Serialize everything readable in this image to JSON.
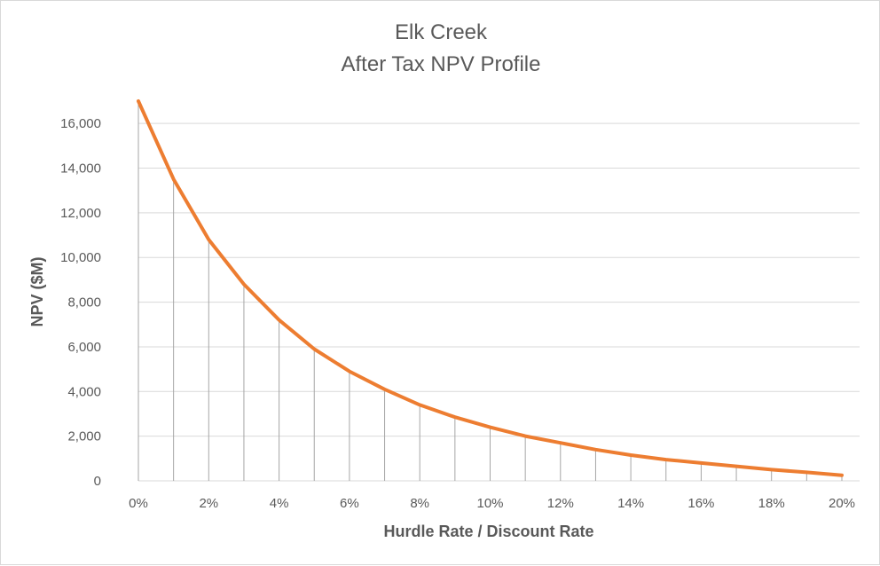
{
  "chart_data": {
    "type": "line",
    "title_lines": [
      "Elk Creek",
      "After Tax NPV Profile"
    ],
    "xlabel": "Hurdle Rate / Discount Rate",
    "ylabel": "NPV ($M)",
    "x": [
      0,
      1,
      2,
      3,
      4,
      5,
      6,
      7,
      8,
      9,
      10,
      11,
      12,
      13,
      14,
      15,
      16,
      17,
      18,
      19,
      20
    ],
    "x_tick_values": [
      0,
      2,
      4,
      6,
      8,
      10,
      12,
      14,
      16,
      18,
      20
    ],
    "x_tick_labels": [
      "0%",
      "2%",
      "4%",
      "6%",
      "8%",
      "10%",
      "12%",
      "14%",
      "16%",
      "18%",
      "20%"
    ],
    "y_tick_values": [
      0,
      2000,
      4000,
      6000,
      8000,
      10000,
      12000,
      14000,
      16000
    ],
    "y_tick_labels": [
      "0",
      "2,000",
      "4,000",
      "6,000",
      "8,000",
      "10,000",
      "12,000",
      "14,000",
      "16,000"
    ],
    "xlim": [
      0,
      20
    ],
    "ylim": [
      0,
      17000
    ],
    "grid": "horizontal",
    "drop_lines": true,
    "series": [
      {
        "color": "#ed7d31",
        "values": [
          17000,
          13500,
          10800,
          8800,
          7200,
          5900,
          4900,
          4100,
          3400,
          2850,
          2400,
          2000,
          1700,
          1400,
          1150,
          950,
          800,
          650,
          500,
          380,
          250
        ]
      }
    ],
    "colors": {
      "grid": "#d9d9d9",
      "drop_line": "#a6a6a6",
      "text": "#595959"
    }
  }
}
